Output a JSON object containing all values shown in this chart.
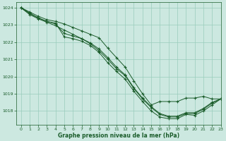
{
  "title": "Graphe pression niveau de la mer (hPa)",
  "background_color": "#cce8e0",
  "grid_color": "#99ccbb",
  "line_color": "#1a5c2a",
  "xlim": [
    -0.5,
    23
  ],
  "ylim": [
    1017.2,
    1024.3
  ],
  "yticks": [
    1018,
    1019,
    1020,
    1021,
    1022,
    1023,
    1024
  ],
  "xticks": [
    0,
    1,
    2,
    3,
    4,
    5,
    6,
    7,
    8,
    9,
    10,
    11,
    12,
    13,
    14,
    15,
    16,
    17,
    18,
    19,
    20,
    21,
    22,
    23
  ],
  "series": [
    {
      "x": [
        0,
        1,
        2,
        3,
        4,
        5,
        6,
        7,
        8,
        9,
        10,
        11,
        12,
        13,
        14,
        15,
        16,
        17,
        18,
        19,
        20,
        21,
        22,
        23
      ],
      "y": [
        1024.0,
        1023.7,
        1023.4,
        1023.2,
        1023.1,
        1022.3,
        1022.2,
        1022.05,
        1021.8,
        1021.4,
        1020.8,
        1020.3,
        1019.85,
        1019.15,
        1018.55,
        1018.0,
        1017.65,
        1017.55,
        1017.55,
        1017.8,
        1017.75,
        1018.0,
        1018.35,
        1018.7
      ]
    },
    {
      "x": [
        0,
        1,
        2,
        3,
        4,
        5,
        6,
        7,
        8,
        9,
        10,
        11,
        12,
        13,
        14,
        15,
        16,
        17,
        18,
        19,
        20,
        21,
        22,
        23
      ],
      "y": [
        1024.0,
        1023.65,
        1023.4,
        1023.2,
        1023.05,
        1022.5,
        1022.35,
        1022.2,
        1021.9,
        1021.5,
        1021.0,
        1020.45,
        1020.05,
        1019.3,
        1018.7,
        1018.2,
        1017.8,
        1017.65,
        1017.65,
        1017.85,
        1017.85,
        1018.1,
        1018.45,
        1018.7
      ]
    },
    {
      "x": [
        0,
        1,
        2,
        3,
        4,
        5,
        6,
        7,
        8,
        9,
        10,
        11,
        12,
        13,
        14,
        15,
        16,
        17,
        18,
        19,
        20,
        21,
        22,
        23
      ],
      "y": [
        1024.0,
        1023.6,
        1023.35,
        1023.15,
        1022.95,
        1022.7,
        1022.45,
        1022.2,
        1021.95,
        1021.6,
        1021.1,
        1020.55,
        1020.1,
        1019.35,
        1018.75,
        1018.25,
        1017.85,
        1017.7,
        1017.7,
        1017.9,
        1017.9,
        1018.15,
        1018.5,
        1018.7
      ]
    },
    {
      "x": [
        0,
        1,
        2,
        3,
        4,
        5,
        6,
        7,
        8,
        9,
        10,
        11,
        12,
        13,
        14,
        15,
        16,
        17,
        18,
        19,
        20,
        21,
        22,
        23
      ],
      "y": [
        1024.0,
        1023.75,
        1023.5,
        1023.3,
        1023.2,
        1023.05,
        1022.85,
        1022.65,
        1022.45,
        1022.25,
        1021.65,
        1021.1,
        1020.55,
        1019.75,
        1019.0,
        1018.35,
        1018.55,
        1018.55,
        1018.55,
        1018.75,
        1018.75,
        1018.85,
        1018.7,
        1018.7
      ]
    }
  ]
}
